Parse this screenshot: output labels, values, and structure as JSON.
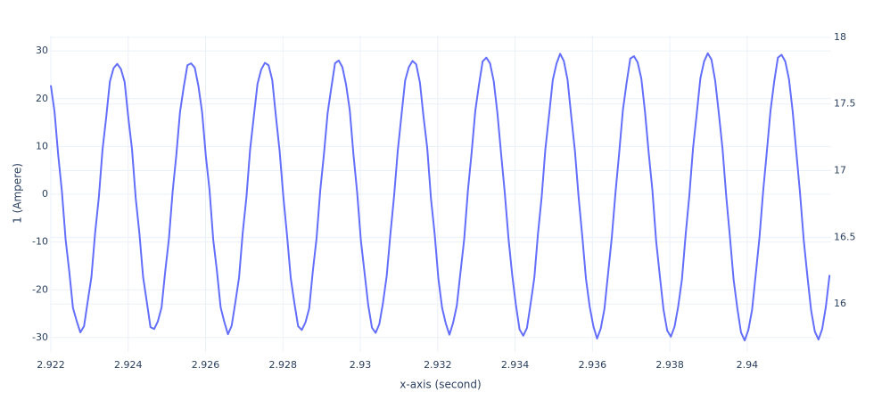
{
  "chart_data": {
    "type": "line",
    "xlabel": "x-axis (second)",
    "ylabel": "1 (Ampere)",
    "color": "#636efa",
    "grid": true,
    "xlim": [
      2.922,
      2.94217
    ],
    "xticks": [
      2.922,
      2.924,
      2.926,
      2.928,
      2.93,
      2.932,
      2.934,
      2.936,
      2.938,
      2.94
    ],
    "ylim": [
      -33,
      33.2
    ],
    "yticks": [
      -30,
      -20,
      -10,
      0,
      10,
      20,
      30
    ],
    "y2lim": [
      15.64,
      18.013
    ],
    "y2ticks": [
      16,
      16.5,
      17,
      17.5,
      18
    ],
    "x": [
      2.922,
      2.9220954,
      2.9221908,
      2.9222862,
      2.9223816,
      2.922477,
      2.9225724,
      2.9226678,
      2.9227632,
      2.9228586,
      2.922954,
      2.9230494,
      2.9231448,
      2.9232402,
      2.9233356,
      2.923431,
      2.9235264,
      2.9236218,
      2.9237172,
      2.9238126,
      2.923908,
      2.9240034,
      2.9240988,
      2.9241942,
      2.9242896,
      2.924385,
      2.9244804,
      2.9245758,
      2.9246712,
      2.9247666,
      2.924862,
      2.9249574,
      2.9250528,
      2.9251482,
      2.9252436,
      2.925339,
      2.9254344,
      2.9255298,
      2.9256252,
      2.9257206,
      2.925816,
      2.9259114,
      2.9260068,
      2.9261022,
      2.9261976,
      2.926293,
      2.9263884,
      2.9264838,
      2.9265792,
      2.9266746,
      2.92677,
      2.9268654,
      2.9269608,
      2.9270562,
      2.9271516,
      2.927247,
      2.9273424,
      2.9274378,
      2.9275332,
      2.9276286,
      2.927724,
      2.9278194,
      2.9279148,
      2.9280102,
      2.9281056,
      2.928201,
      2.9282964,
      2.9283918,
      2.9284872,
      2.9285826,
      2.928678,
      2.9287734,
      2.9288688,
      2.9289642,
      2.9290596,
      2.929155,
      2.9292504,
      2.9293458,
      2.9294412,
      2.9295366,
      2.929632,
      2.9297274,
      2.9298228,
      2.9299182,
      2.9300136,
      2.930109,
      2.9302044,
      2.9302998,
      2.9303952,
      2.9304906,
      2.930586,
      2.9306814,
      2.9307768,
      2.9308722,
      2.9309676,
      2.931063,
      2.9311584,
      2.9312538,
      2.9313492,
      2.9314446,
      2.93154,
      2.9316354,
      2.9317308,
      2.9318262,
      2.9319216,
      2.932017,
      2.9321124,
      2.9322078,
      2.9323032,
      2.9323986,
      2.932494,
      2.9325894,
      2.9326848,
      2.9327802,
      2.9328756,
      2.932971,
      2.9330664,
      2.9331618,
      2.9332572,
      2.9333526,
      2.933448,
      2.9335434,
      2.9336388,
      2.9337342,
      2.9338296,
      2.933925,
      2.9340204,
      2.9341158,
      2.9342112,
      2.9343066,
      2.934402,
      2.9344974,
      2.9345928,
      2.9346882,
      2.9347836,
      2.934879,
      2.9349744,
      2.9350698,
      2.9351652,
      2.9352606,
      2.935356,
      2.9354514,
      2.9355468,
      2.9356422,
      2.9357376,
      2.935833,
      2.9359284,
      2.9360238,
      2.9361192,
      2.9362146,
      2.93631,
      2.9364054,
      2.9365008,
      2.9365962,
      2.9366916,
      2.936787,
      2.9368824,
      2.9369778,
      2.9370732,
      2.9371686,
      2.937264,
      2.9373594,
      2.9374548,
      2.9375502,
      2.9376456,
      2.937741,
      2.9378364,
      2.9379318,
      2.9380272,
      2.9381226,
      2.938218,
      2.9383134,
      2.9384088,
      2.9385042,
      2.9385996,
      2.938695,
      2.9387904,
      2.9388858,
      2.9389812,
      2.9390766,
      2.939172,
      2.9392674,
      2.9393628,
      2.9394582,
      2.9395536,
      2.939649,
      2.9397444,
      2.9398398,
      2.9399352,
      2.9400306,
      2.940126,
      2.9402214,
      2.9403168,
      2.9404122,
      2.9405076,
      2.940603,
      2.9406984,
      2.9407938,
      2.9408892,
      2.9409846,
      2.94108,
      2.9411754,
      2.9412708,
      2.9413662,
      2.9414616,
      2.941557,
      2.9416524,
      2.9417478,
      2.9418432,
      2.9419386,
      2.942034,
      2.9421294
    ],
    "values": [
      22.8,
      17.3,
      8.2,
      0.6,
      -9.4,
      -16.2,
      -23.8,
      -26.5,
      -28.9,
      -27.6,
      -22.4,
      -17.3,
      -8.1,
      -0.7,
      9.3,
      16.1,
      23.6,
      26.4,
      27.3,
      26.2,
      23.5,
      16.0,
      9.4,
      -0.8,
      -8.2,
      -17.3,
      -22.5,
      -27.8,
      -28.2,
      -26.6,
      -23.7,
      -16.1,
      -9.3,
      0.5,
      8.2,
      17.2,
      22.4,
      27.0,
      27.4,
      26.5,
      22.6,
      17.1,
      8.0,
      0.9,
      -9.5,
      -16.0,
      -23.6,
      -26.7,
      -29.3,
      -27.5,
      -22.6,
      -17.4,
      -8.0,
      -0.6,
      9.4,
      16.3,
      23.1,
      26.1,
      27.5,
      27.0,
      23.9,
      16.2,
      9.0,
      -0.5,
      -8.6,
      -17.5,
      -22.8,
      -27.6,
      -28.4,
      -26.8,
      -23.9,
      -16.0,
      -9.2,
      0.8,
      8.4,
      17.0,
      22.3,
      27.4,
      28.0,
      26.6,
      22.9,
      17.6,
      8.3,
      0.4,
      -9.6,
      -16.4,
      -23.2,
      -27.9,
      -29.0,
      -27.2,
      -22.7,
      -17.1,
      -8.4,
      -0.4,
      9.1,
      16.5,
      23.8,
      26.6,
      27.9,
      27.2,
      23.4,
      16.1,
      9.6,
      -0.9,
      -8.3,
      -17.6,
      -23.7,
      -27.0,
      -29.4,
      -26.9,
      -23.3,
      -16.3,
      -9.4,
      0.7,
      8.6,
      17.4,
      22.9,
      27.8,
      28.6,
      27.4,
      23.7,
      17.0,
      8.5,
      0.3,
      -9.2,
      -16.8,
      -23.1,
      -28.3,
      -29.6,
      -28.0,
      -22.9,
      -17.5,
      -8.2,
      -0.5,
      9.5,
      16.6,
      23.9,
      27.3,
      29.4,
      27.9,
      24.0,
      16.4,
      9.1,
      -0.6,
      -8.8,
      -17.7,
      -23.5,
      -27.6,
      -30.2,
      -28.1,
      -24.0,
      -16.5,
      -9.0,
      0.4,
      8.7,
      17.6,
      23.3,
      28.4,
      28.9,
      27.6,
      24.2,
      17.2,
      8.6,
      0.8,
      -9.7,
      -17.0,
      -24.1,
      -28.5,
      -29.8,
      -27.7,
      -23.4,
      -17.8,
      -8.5,
      -0.3,
      9.6,
      16.8,
      24.3,
      27.8,
      29.5,
      28.2,
      23.8,
      16.9,
      9.5,
      -0.4,
      -8.9,
      -17.9,
      -23.8,
      -28.9,
      -30.6,
      -28.4,
      -24.2,
      -16.7,
      -9.1,
      0.6,
      8.9,
      17.5,
      23.6,
      28.6,
      29.2,
      27.8,
      24.1,
      17.4,
      8.7,
      0.2,
      -9.6,
      -17.2,
      -24.3,
      -28.7,
      -30.4,
      -28.2,
      -23.5,
      -16.9
    ]
  }
}
